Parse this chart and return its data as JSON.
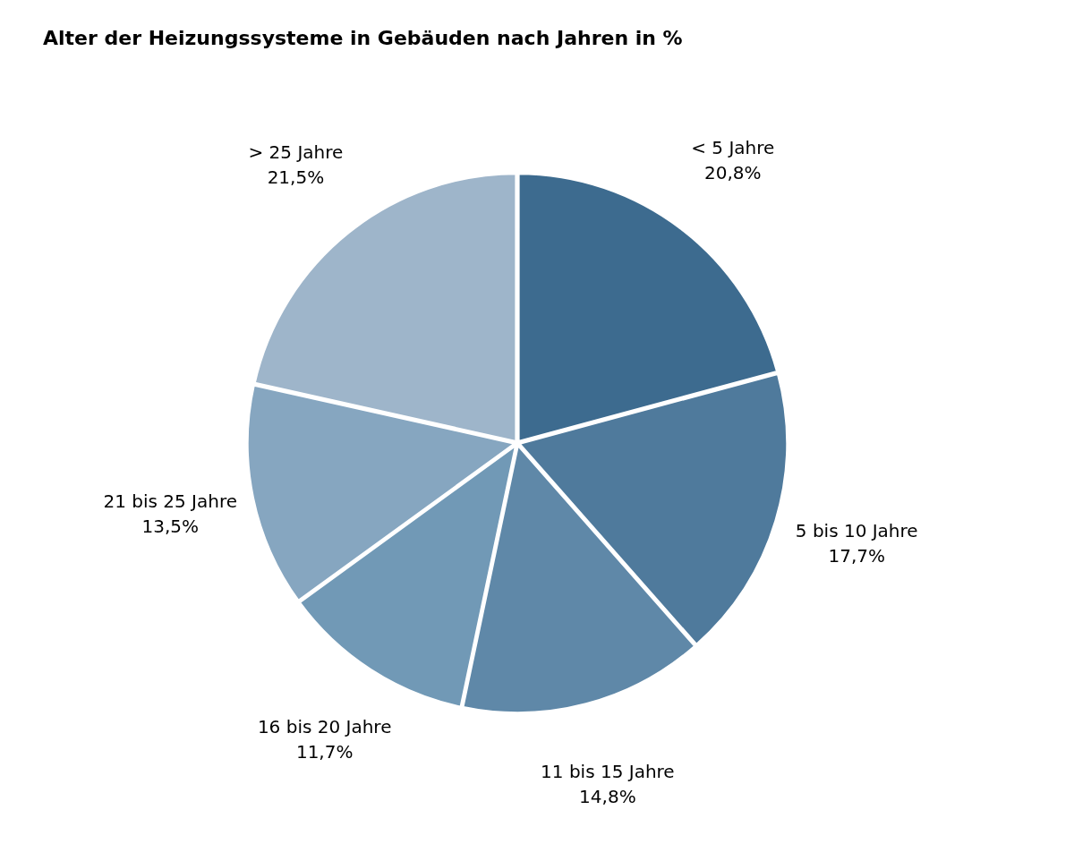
{
  "chart_data": {
    "type": "pie",
    "title": "Alter der Heizungssysteme in Gebäuden nach Jahren in %",
    "categories": [
      "< 5 Jahre",
      "5 bis 10 Jahre",
      "11 bis 15 Jahre",
      "16 bis 20 Jahre",
      "21 bis 25 Jahre",
      "> 25 Jahre"
    ],
    "values": [
      20.8,
      17.7,
      14.8,
      11.7,
      13.5,
      21.5
    ],
    "value_labels": [
      "20,8%",
      "17,7%",
      "14,8%",
      "11,7%",
      "13,5%",
      "21,5%"
    ],
    "colors": [
      "#3d6b8f",
      "#4f7a9c",
      "#5f88a8",
      "#7199b6",
      "#86a6c0",
      "#9eb5ca"
    ],
    "legend": false
  }
}
